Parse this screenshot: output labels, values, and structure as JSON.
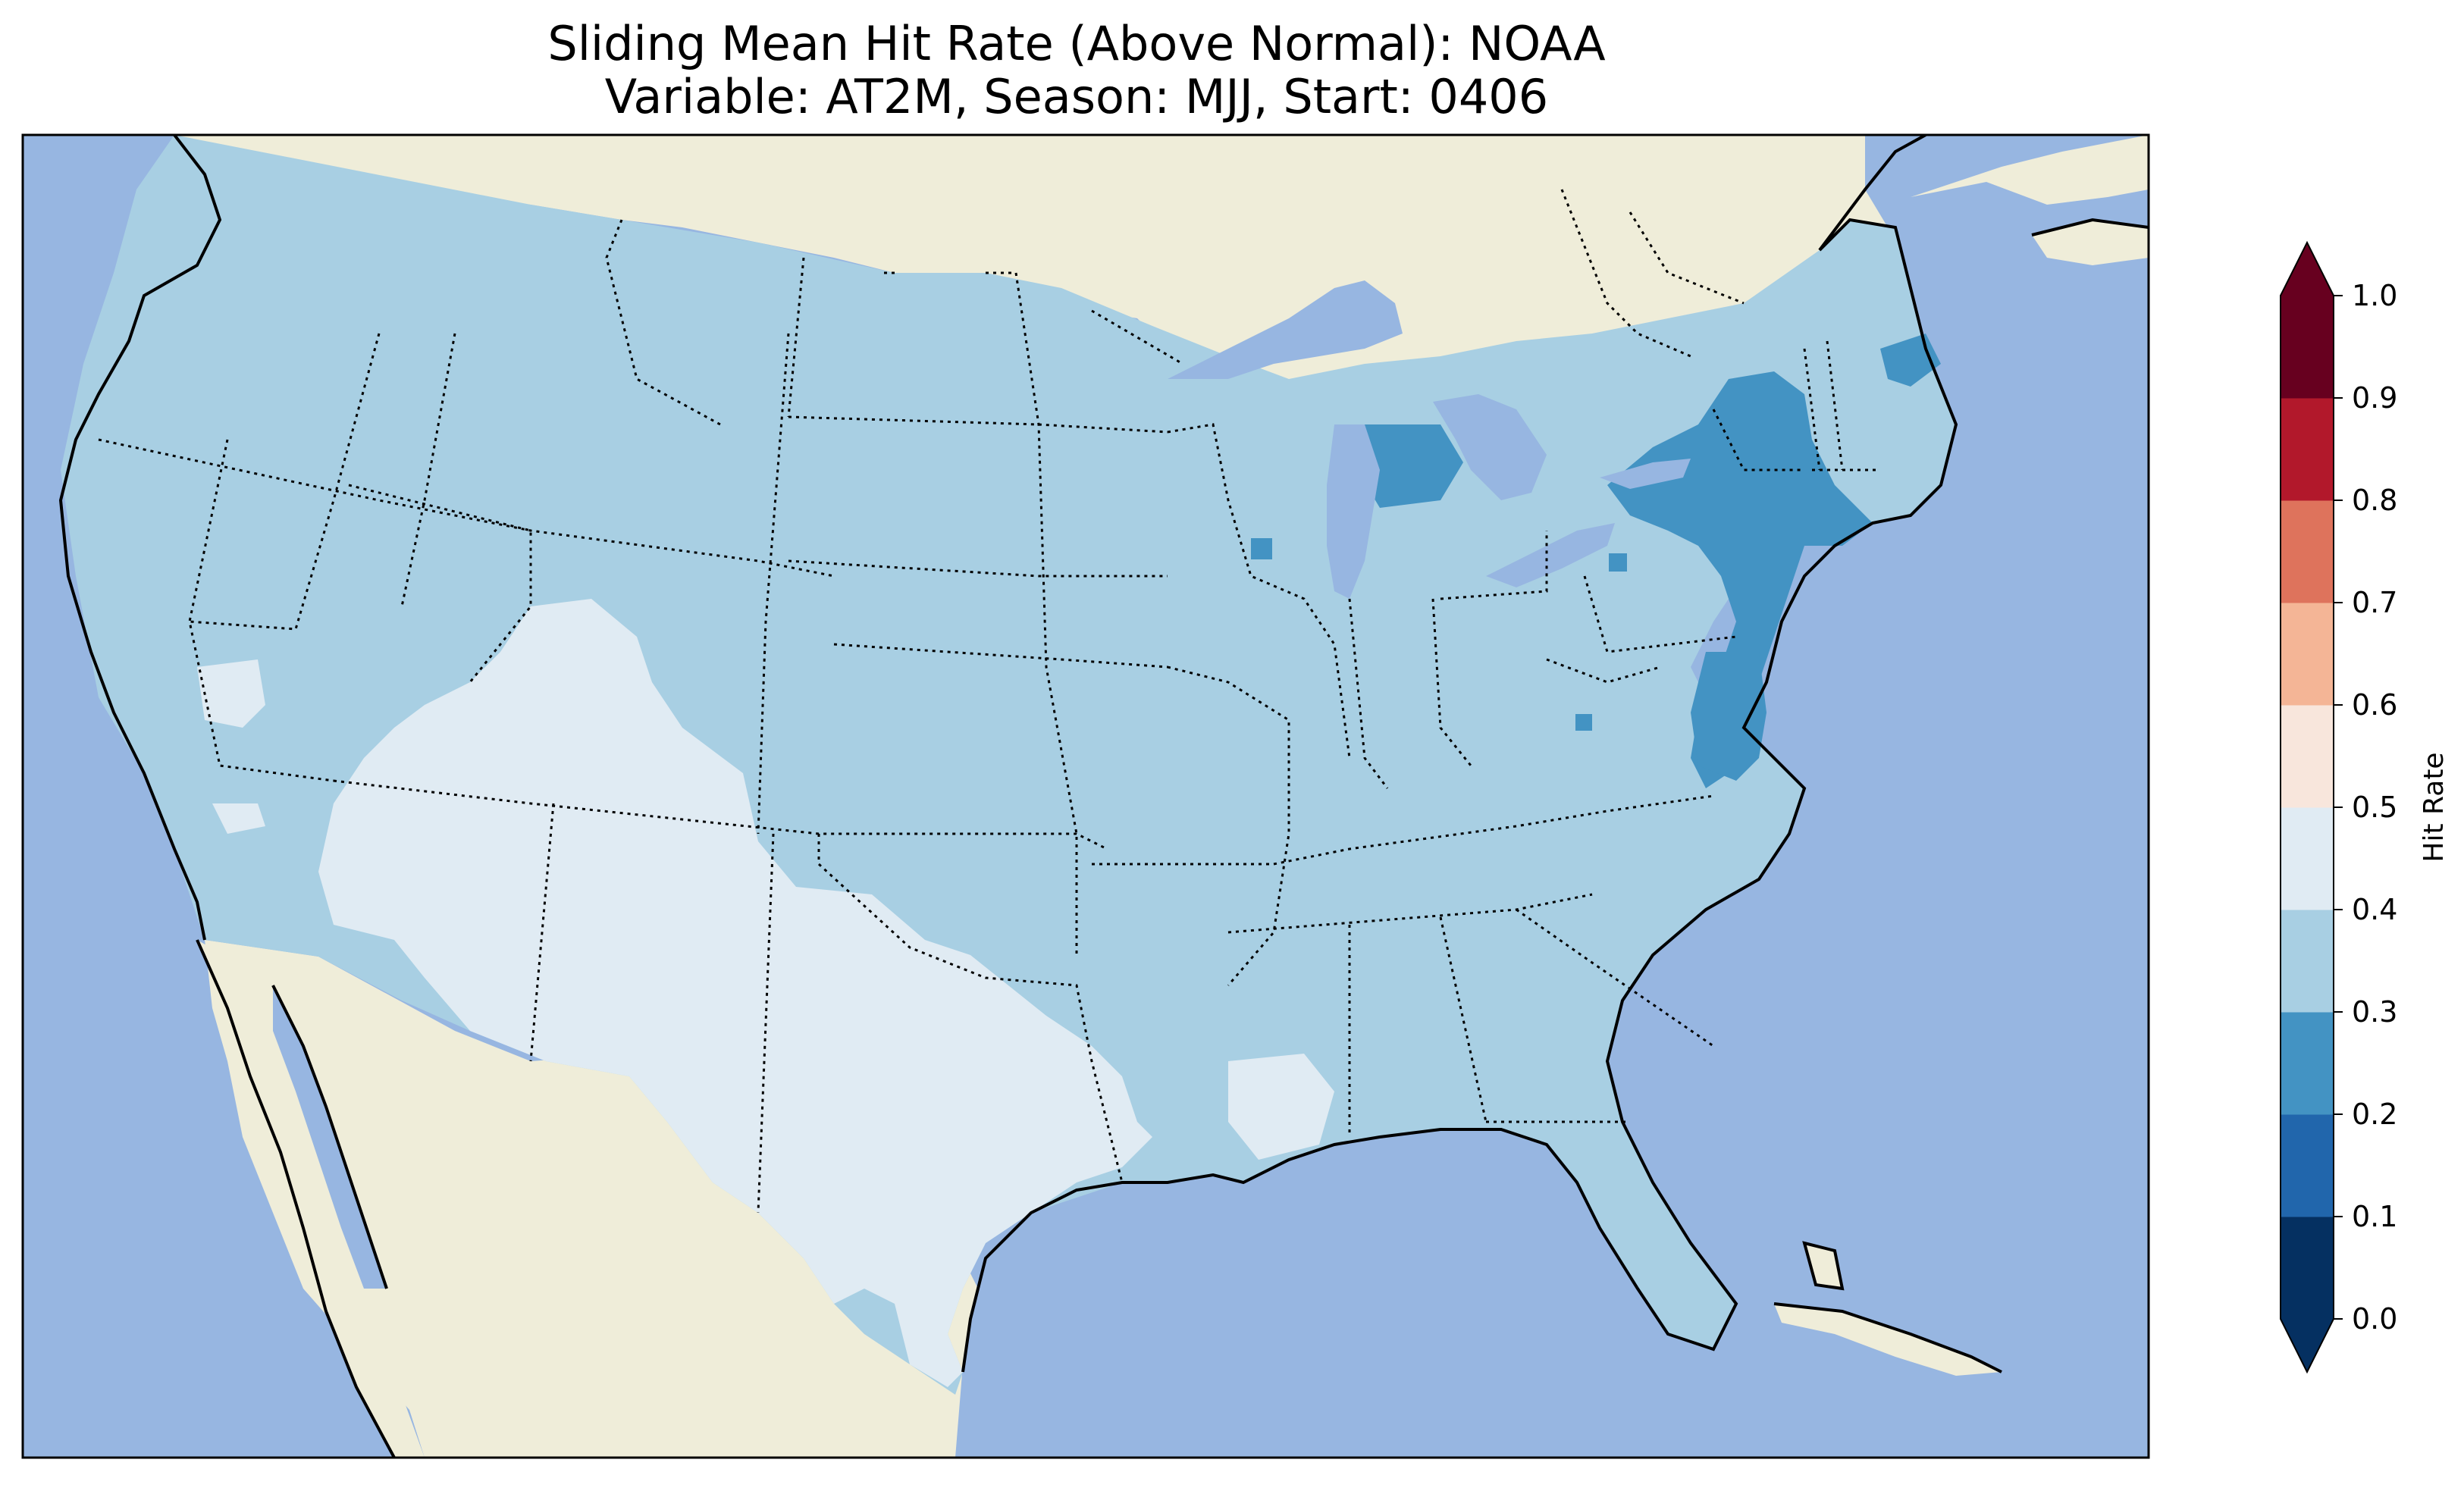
{
  "title_line1": "Sliding Mean Hit Rate (Above Normal): NOAA",
  "title_line2": "Variable: AT2M, Season: MJJ, Start: 0406",
  "colors": {
    "ocean": "#97b6e1",
    "land": "#efedd9",
    "hit_0_0_1": "#053061",
    "hit_0_1_0_2": "#2166ac",
    "hit_0_2_0_3": "#4393c3",
    "hit_0_3_0_4": "#a8cfe3",
    "hit_0_4_0_5": "#e0ebf3",
    "hit_0_5_0_6": "#f8e6dc",
    "hit_0_6_0_7": "#f4b596",
    "hit_0_7_0_8": "#de735c",
    "hit_0_8_0_9": "#b2182b",
    "hit_0_9_1_0": "#67001f"
  },
  "colorbar": {
    "label": "Hit Rate",
    "ticks": [
      "0.0",
      "0.1",
      "0.2",
      "0.3",
      "0.4",
      "0.5",
      "0.6",
      "0.7",
      "0.8",
      "0.9",
      "1.0"
    ],
    "levels": [
      0.0,
      0.1,
      0.2,
      0.3,
      0.4,
      0.5,
      0.6,
      0.7,
      0.8,
      0.9,
      1.0
    ],
    "extend": "both"
  },
  "map_summary": {
    "region": "Contiguous United States",
    "dominant_level": "0.3-0.4",
    "southwest_texas_level": "0.4-0.5",
    "northeast_level": "0.2-0.3"
  }
}
